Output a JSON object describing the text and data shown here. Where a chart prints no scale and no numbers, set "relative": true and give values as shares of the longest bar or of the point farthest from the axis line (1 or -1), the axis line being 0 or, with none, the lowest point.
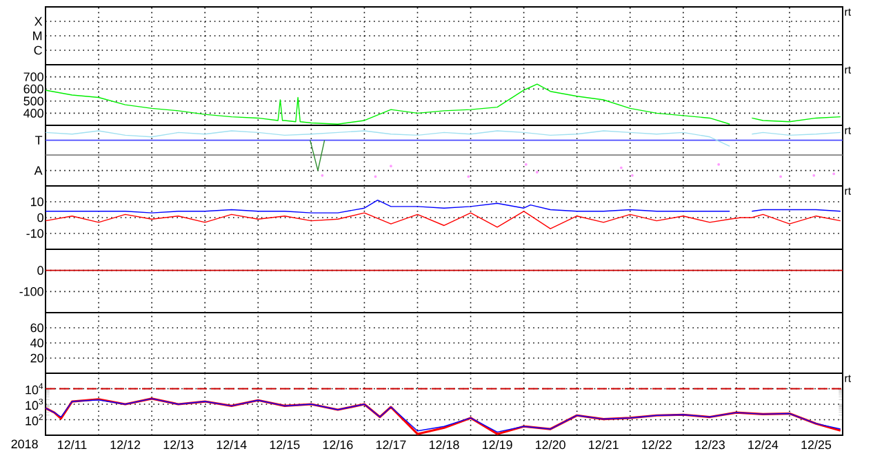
{
  "chart_data": [
    {
      "type": "other",
      "annotations": [
        "X",
        "M",
        "C",
        "rt"
      ]
    },
    {
      "type": "line",
      "xlim": [
        "2018-12-11",
        "2018-12-26"
      ],
      "ylim": [
        300,
        800
      ],
      "yticks": [
        400,
        500,
        600,
        700
      ],
      "grid": true,
      "tick_labels": "y",
      "xticks": [
        {
          "value": "2018-12-12",
          "label": null
        },
        {
          "value": "2018-12-13",
          "label": null
        },
        {
          "value": "2018-12-14",
          "label": null
        },
        {
          "value": "2018-12-15",
          "label": null
        },
        {
          "value": "2018-12-16",
          "label": null
        },
        {
          "value": "2018-12-17",
          "label": null
        },
        {
          "value": "2018-12-18",
          "label": null
        },
        {
          "value": "2018-12-19",
          "label": null
        },
        {
          "value": "2018-12-20",
          "label": null
        },
        {
          "value": "2018-12-21",
          "label": null
        },
        {
          "value": "2018-12-22",
          "label": null
        },
        {
          "value": "2018-12-23",
          "label": null
        },
        {
          "value": "2018-12-24",
          "label": null
        },
        {
          "value": "2018-12-25",
          "label": null
        }
      ],
      "annotations": [
        "rt"
      ],
      "series": [
        {
          "color": "#00ee00",
          "x": [
            "2018-12-11T00:00",
            "2018-12-11T12:00",
            "2018-12-12T00:00",
            "2018-12-12T12:00",
            "2018-12-13T00:00",
            "2018-12-13T12:00",
            "2018-12-14T00:00",
            "2018-12-14T12:00",
            "2018-12-15T00:00",
            "2018-12-15T09:00",
            "2018-12-15T10:00",
            "2018-12-15T11:00",
            "2018-12-15T12:00",
            "2018-12-15T17:00",
            "2018-12-15T18:00",
            "2018-12-15T19:00",
            "2018-12-16T00:00",
            "2018-12-16T12:00",
            "2018-12-17T00:00",
            "2018-12-17T12:00",
            "2018-12-18T00:00",
            "2018-12-18T12:00",
            "2018-12-19T00:00",
            "2018-12-19T12:00",
            "2018-12-20T00:00",
            "2018-12-20T06:00",
            "2018-12-20T12:00",
            "2018-12-21T00:00",
            "2018-12-21T12:00",
            "2018-12-22T00:00",
            "2018-12-22T12:00",
            "2018-12-23T00:00",
            "2018-12-23T12:00",
            "2018-12-23T21:00",
            "2018-12-24T02:00",
            "2018-12-24T07:00",
            "2018-12-24T12:00",
            "2018-12-25T00:00",
            "2018-12-25T12:00",
            "2018-12-25T23:00"
          ],
          "values": [
            590,
            550,
            530,
            470,
            440,
            420,
            390,
            370,
            360,
            340,
            510,
            340,
            340,
            330,
            530,
            330,
            320,
            310,
            340,
            430,
            400,
            420,
            430,
            450,
            590,
            640,
            580,
            540,
            510,
            440,
            400,
            380,
            360,
            310,
            null,
            360,
            340,
            330,
            360,
            370
          ]
        }
      ]
    },
    {
      "type": "line",
      "relative": true,
      "xlim": [
        "2018-12-11",
        "2018-12-26"
      ],
      "grid": "x",
      "tick_labels": false,
      "xticks": [
        {
          "value": "2018-12-12",
          "label": null
        },
        {
          "value": "2018-12-13",
          "label": null
        },
        {
          "value": "2018-12-14",
          "label": null
        },
        {
          "value": "2018-12-15",
          "label": null
        },
        {
          "value": "2018-12-16",
          "label": null
        },
        {
          "value": "2018-12-17",
          "label": null
        },
        {
          "value": "2018-12-18",
          "label": null
        },
        {
          "value": "2018-12-19",
          "label": null
        },
        {
          "value": "2018-12-20",
          "label": null
        },
        {
          "value": "2018-12-21",
          "label": null
        },
        {
          "value": "2018-12-22",
          "label": null
        },
        {
          "value": "2018-12-23",
          "label": null
        },
        {
          "value": "2018-12-24",
          "label": null
        },
        {
          "value": "2018-12-25",
          "label": null
        }
      ],
      "annotations": [
        "rt"
      ],
      "ref_lines": [
        {
          "axis": "y",
          "value": 0.83,
          "label": "T",
          "color": "#4b4bff"
        },
        {
          "axis": "y",
          "value": 0.56,
          "color": "#808080"
        },
        {
          "axis": "y",
          "value": 0.28,
          "label": "A",
          "color": "#000000",
          "line_style": "dotted"
        }
      ],
      "series": [
        {
          "color": "#a0e0f0",
          "x": [
            "2018-12-11T00:00",
            "2018-12-11T12:00",
            "2018-12-12T00:00",
            "2018-12-12T12:00",
            "2018-12-13T00:00",
            "2018-12-13T12:00",
            "2018-12-14T00:00",
            "2018-12-14T12:00",
            "2018-12-15T00:00",
            "2018-12-15T12:00",
            "2018-12-16T00:00",
            "2018-12-16T12:00",
            "2018-12-17T00:00",
            "2018-12-17T12:00",
            "2018-12-18T00:00",
            "2018-12-18T12:00",
            "2018-12-19T00:00",
            "2018-12-19T12:00",
            "2018-12-20T00:00",
            "2018-12-20T12:00",
            "2018-12-21T00:00",
            "2018-12-21T12:00",
            "2018-12-22T00:00",
            "2018-12-22T12:00",
            "2018-12-23T00:00",
            "2018-12-23T12:00",
            "2018-12-23T21:00",
            "2018-12-24T02:00",
            "2018-12-24T07:00",
            "2018-12-24T12:00",
            "2018-12-25T00:00",
            "2018-12-25T12:00",
            "2018-12-25T23:00"
          ],
          "values": [
            0.97,
            0.94,
            1,
            0.92,
            0.89,
            0.97,
            0.94,
            1,
            0.97,
            0.92,
            0.94,
            0.97,
            1,
            0.94,
            0.92,
            0.97,
            0.94,
            1,
            0.97,
            0.92,
            0.94,
            1,
            0.97,
            0.94,
            0.97,
            0.89,
            0.72,
            null,
            0.94,
            0.97,
            0.92,
            0.94,
            0.97
          ]
        },
        {
          "color": "#2e8b2e",
          "x": [
            "2018-12-15T23:30",
            "2018-12-16T03:00",
            "2018-12-16T06:00"
          ],
          "values": [
            0.83,
            0.28,
            0.83
          ]
        },
        {
          "type": "scatter",
          "color": "#ff99ff",
          "x": [
            "2018-12-16T05:00",
            "2018-12-17T05:00",
            "2018-12-17T12:00",
            "2018-12-18T23:00",
            "2018-12-20T01:00",
            "2018-12-20T06:00",
            "2018-12-21T20:00",
            "2018-12-22T01:00",
            "2018-12-23T16:00",
            "2018-12-24T20:00",
            "2018-12-25T11:00",
            "2018-12-25T20:00"
          ],
          "values": [
            0.19,
            0.17,
            0.36,
            0.17,
            0.39,
            0.25,
            0.33,
            0.19,
            0.39,
            0.17,
            0.19,
            0.22
          ]
        }
      ]
    },
    {
      "type": "line",
      "xlim": [
        "2018-12-11",
        "2018-12-26"
      ],
      "ylim": [
        -20,
        20
      ],
      "yticks": [
        -10,
        0,
        10
      ],
      "grid": true,
      "tick_labels": "y",
      "xticks": [
        {
          "value": "2018-12-12",
          "label": null
        },
        {
          "value": "2018-12-13",
          "label": null
        },
        {
          "value": "2018-12-14",
          "label": null
        },
        {
          "value": "2018-12-15",
          "label": null
        },
        {
          "value": "2018-12-16",
          "label": null
        },
        {
          "value": "2018-12-17",
          "label": null
        },
        {
          "value": "2018-12-18",
          "label": null
        },
        {
          "value": "2018-12-19",
          "label": null
        },
        {
          "value": "2018-12-20",
          "label": null
        },
        {
          "value": "2018-12-21",
          "label": null
        },
        {
          "value": "2018-12-22",
          "label": null
        },
        {
          "value": "2018-12-23",
          "label": null
        },
        {
          "value": "2018-12-24",
          "label": null
        },
        {
          "value": "2018-12-25",
          "label": null
        }
      ],
      "annotations": [
        "rt"
      ],
      "series": [
        {
          "color": "#0000ff",
          "x": [
            "2018-12-11T00:00",
            "2018-12-11T12:00",
            "2018-12-12T00:00",
            "2018-12-12T12:00",
            "2018-12-13T00:00",
            "2018-12-13T12:00",
            "2018-12-14T00:00",
            "2018-12-14T12:00",
            "2018-12-15T00:00",
            "2018-12-15T12:00",
            "2018-12-16T00:00",
            "2018-12-16T12:00",
            "2018-12-17T00:00",
            "2018-12-17T06:00",
            "2018-12-17T12:00",
            "2018-12-18T00:00",
            "2018-12-18T12:00",
            "2018-12-19T00:00",
            "2018-12-19T12:00",
            "2018-12-20T00:00",
            "2018-12-20T03:00",
            "2018-12-20T12:00",
            "2018-12-21T00:00",
            "2018-12-21T12:00",
            "2018-12-22T00:00",
            "2018-12-22T12:00",
            "2018-12-23T00:00",
            "2018-12-23T12:00",
            "2018-12-23T21:00",
            "2018-12-24T02:00",
            "2018-12-24T07:00",
            "2018-12-24T12:00",
            "2018-12-25T00:00",
            "2018-12-25T12:00",
            "2018-12-25T23:00"
          ],
          "values": [
            4,
            4,
            4,
            4,
            3,
            4,
            4,
            5,
            4,
            4,
            3,
            3,
            6,
            11,
            7,
            7,
            6,
            7,
            9,
            6,
            8,
            5,
            4,
            4,
            5,
            4,
            4,
            4,
            4,
            null,
            4,
            5,
            5,
            5,
            4
          ]
        },
        {
          "color": "#ff0000",
          "x": [
            "2018-12-11T00:00",
            "2018-12-11T12:00",
            "2018-12-12T00:00",
            "2018-12-12T12:00",
            "2018-12-13T00:00",
            "2018-12-13T12:00",
            "2018-12-14T00:00",
            "2018-12-14T12:00",
            "2018-12-15T00:00",
            "2018-12-15T12:00",
            "2018-12-16T00:00",
            "2018-12-16T12:00",
            "2018-12-17T00:00",
            "2018-12-17T12:00",
            "2018-12-18T00:00",
            "2018-12-18T12:00",
            "2018-12-19T00:00",
            "2018-12-19T12:00",
            "2018-12-20T00:00",
            "2018-12-20T12:00",
            "2018-12-21T00:00",
            "2018-12-21T12:00",
            "2018-12-22T00:00",
            "2018-12-22T12:00",
            "2018-12-23T00:00",
            "2018-12-23T12:00",
            "2018-12-23T21:00",
            "2018-12-24T02:00",
            "2018-12-24T07:00",
            "2018-12-24T12:00",
            "2018-12-25T00:00",
            "2018-12-25T12:00",
            "2018-12-25T23:00"
          ],
          "values": [
            -2,
            1,
            -3,
            2,
            -1,
            1,
            -3,
            2,
            -1,
            1,
            -2,
            -1,
            3,
            -4,
            2,
            -5,
            3,
            -6,
            4,
            -7,
            1,
            -3,
            2,
            -2,
            1,
            -3,
            -1,
            0,
            0,
            2,
            -4,
            1,
            -2
          ]
        }
      ]
    },
    {
      "type": "line",
      "xlim": [
        "2018-12-11",
        "2018-12-26"
      ],
      "ylim": [
        -200,
        100
      ],
      "yticks": [
        -100,
        0
      ],
      "grid": true,
      "tick_labels": "y",
      "xticks": [
        {
          "value": "2018-12-12",
          "label": null
        },
        {
          "value": "2018-12-13",
          "label": null
        },
        {
          "value": "2018-12-14",
          "label": null
        },
        {
          "value": "2018-12-15",
          "label": null
        },
        {
          "value": "2018-12-16",
          "label": null
        },
        {
          "value": "2018-12-17",
          "label": null
        },
        {
          "value": "2018-12-18",
          "label": null
        },
        {
          "value": "2018-12-19",
          "label": null
        },
        {
          "value": "2018-12-20",
          "label": null
        },
        {
          "value": "2018-12-21",
          "label": null
        },
        {
          "value": "2018-12-22",
          "label": null
        },
        {
          "value": "2018-12-23",
          "label": null
        },
        {
          "value": "2018-12-24",
          "label": null
        },
        {
          "value": "2018-12-25",
          "label": null
        }
      ],
      "ref_lines": [
        {
          "axis": "y",
          "value": 0,
          "color": "#cc0000"
        }
      ]
    },
    {
      "type": "line",
      "xlim": [
        "2018-12-11",
        "2018-12-26"
      ],
      "ylim": [
        0,
        80
      ],
      "yticks": [
        20,
        40,
        60
      ],
      "grid": true,
      "tick_labels": "y",
      "xticks": [
        {
          "value": "2018-12-12",
          "label": null
        },
        {
          "value": "2018-12-13",
          "label": null
        },
        {
          "value": "2018-12-14",
          "label": null
        },
        {
          "value": "2018-12-15",
          "label": null
        },
        {
          "value": "2018-12-16",
          "label": null
        },
        {
          "value": "2018-12-17",
          "label": null
        },
        {
          "value": "2018-12-18",
          "label": null
        },
        {
          "value": "2018-12-19",
          "label": null
        },
        {
          "value": "2018-12-20",
          "label": null
        },
        {
          "value": "2018-12-21",
          "label": null
        },
        {
          "value": "2018-12-22",
          "label": null
        },
        {
          "value": "2018-12-23",
          "label": null
        },
        {
          "value": "2018-12-24",
          "label": null
        },
        {
          "value": "2018-12-25",
          "label": null
        }
      ]
    },
    {
      "type": "line",
      "xlim": [
        "2018-12-11",
        "2018-12-26"
      ],
      "ylim": [
        10,
        100000
      ],
      "log": true,
      "grid": true,
      "xlabel": "2018",
      "yticks": [
        {
          "value": 100,
          "label": "10$^{2}$"
        },
        {
          "value": 1000,
          "label": "10$^{3}$"
        },
        {
          "value": 10000,
          "label": "10$^{4}$"
        }
      ],
      "xticks": [
        {
          "value": "2018-12-11T12:00",
          "label": "12/11"
        },
        {
          "value": "2018-12-12",
          "label": null
        },
        {
          "value": "2018-12-12T12:00",
          "label": "12/12"
        },
        {
          "value": "2018-12-13",
          "label": null
        },
        {
          "value": "2018-12-13T12:00",
          "label": "12/13"
        },
        {
          "value": "2018-12-14",
          "label": null
        },
        {
          "value": "2018-12-14T12:00",
          "label": "12/14"
        },
        {
          "value": "2018-12-15",
          "label": null
        },
        {
          "value": "2018-12-15T12:00",
          "label": "12/15"
        },
        {
          "value": "2018-12-16",
          "label": null
        },
        {
          "value": "2018-12-16T12:00",
          "label": "12/16"
        },
        {
          "value": "2018-12-17",
          "label": null
        },
        {
          "value": "2018-12-17T12:00",
          "label": "12/17"
        },
        {
          "value": "2018-12-18",
          "label": null
        },
        {
          "value": "2018-12-18T12:00",
          "label": "12/18"
        },
        {
          "value": "2018-12-19",
          "label": null
        },
        {
          "value": "2018-12-19T12:00",
          "label": "12/19"
        },
        {
          "value": "2018-12-20",
          "label": null
        },
        {
          "value": "2018-12-20T12:00",
          "label": "12/20"
        },
        {
          "value": "2018-12-21",
          "label": null
        },
        {
          "value": "2018-12-21T12:00",
          "label": "12/21"
        },
        {
          "value": "2018-12-22",
          "label": null
        },
        {
          "value": "2018-12-22T12:00",
          "label": "12/22"
        },
        {
          "value": "2018-12-23",
          "label": null
        },
        {
          "value": "2018-12-23T12:00",
          "label": "12/23"
        },
        {
          "value": "2018-12-24",
          "label": null
        },
        {
          "value": "2018-12-24T12:00",
          "label": "12/24"
        },
        {
          "value": "2018-12-25",
          "label": null
        },
        {
          "value": "2018-12-25T12:00",
          "label": "12/25"
        }
      ],
      "annotations": [
        "rt"
      ],
      "ref_lines": [
        {
          "axis": "y",
          "value": 10000,
          "color": "#cc0000",
          "line_style": "dashed"
        }
      ],
      "series": [
        {
          "color": "#ff0000",
          "x": [
            "2018-12-11T00:00",
            "2018-12-11T04:00",
            "2018-12-11T07:00",
            "2018-12-11T12:00",
            "2018-12-12T00:00",
            "2018-12-12T12:00",
            "2018-12-13T00:00",
            "2018-12-13T12:00",
            "2018-12-14T00:00",
            "2018-12-14T12:00",
            "2018-12-15T00:00",
            "2018-12-15T12:00",
            "2018-12-16T00:00",
            "2018-12-16T12:00",
            "2018-12-17T00:00",
            "2018-12-17T07:00",
            "2018-12-17T12:00",
            "2018-12-18T00:00",
            "2018-12-18T12:00",
            "2018-12-19T00:00",
            "2018-12-19T12:00",
            "2018-12-20T00:00",
            "2018-12-20T12:00",
            "2018-12-21T00:00",
            "2018-12-21T12:00",
            "2018-12-22T00:00",
            "2018-12-22T12:00",
            "2018-12-23T00:00",
            "2018-12-23T12:00",
            "2018-12-24T00:00",
            "2018-12-24T12:00",
            "2018-12-25T00:00",
            "2018-12-25T12:00",
            "2018-12-25T23:00"
          ],
          "values": [
            560,
            290,
            120,
            1500,
            2100,
            1000,
            2300,
            1000,
            1500,
            780,
            1800,
            780,
            1000,
            440,
            1000,
            150,
            660,
            12,
            30,
            130,
            12,
            37,
            25,
            190,
            110,
            130,
            190,
            210,
            150,
            290,
            230,
            250,
            56,
            20
          ]
        },
        {
          "color": "#0000ff",
          "x": [
            "2018-12-11T00:00",
            "2018-12-11T04:00",
            "2018-12-11T07:00",
            "2018-12-11T12:00",
            "2018-12-12T00:00",
            "2018-12-12T12:00",
            "2018-12-13T00:00",
            "2018-12-13T12:00",
            "2018-12-14T00:00",
            "2018-12-14T12:00",
            "2018-12-15T00:00",
            "2018-12-15T12:00",
            "2018-12-16T00:00",
            "2018-12-16T12:00",
            "2018-12-17T00:00",
            "2018-12-17T07:00",
            "2018-12-17T12:00",
            "2018-12-18T00:00",
            "2018-12-18T12:00",
            "2018-12-19T00:00",
            "2018-12-19T12:00",
            "2018-12-20T00:00",
            "2018-12-20T12:00",
            "2018-12-21T00:00",
            "2018-12-21T12:00",
            "2018-12-22T00:00",
            "2018-12-22T12:00",
            "2018-12-23T00:00",
            "2018-12-23T12:00",
            "2018-12-24T00:00",
            "2018-12-24T12:00",
            "2018-12-25T00:00",
            "2018-12-25T12:00",
            "2018-12-25T23:00"
          ],
          "values": [
            560,
            290,
            150,
            1500,
            1900,
            1000,
            2300,
            1000,
            1500,
            780,
            1800,
            780,
            1000,
            440,
            1000,
            150,
            660,
            19,
            37,
            130,
            16,
            37,
            25,
            190,
            110,
            130,
            190,
            210,
            150,
            290,
            230,
            250,
            56,
            25
          ]
        }
      ]
    }
  ]
}
